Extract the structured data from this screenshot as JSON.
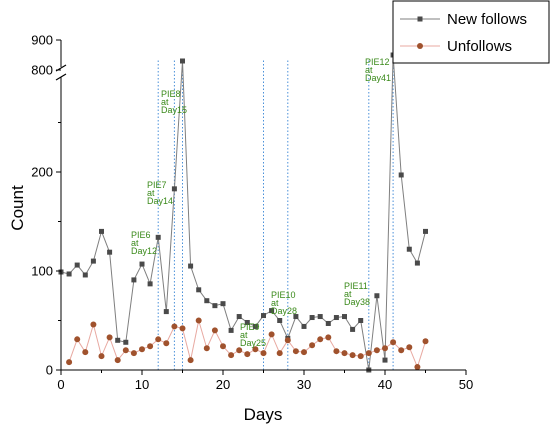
{
  "chart_data": {
    "type": "line",
    "title": "",
    "xlabel": "Days",
    "ylabel": "Count",
    "xlim": [
      0,
      50
    ],
    "ylim_lower": [
      0,
      300
    ],
    "ylim_upper": [
      800,
      900
    ],
    "axis_break": "between 300 and 800 on the y-axis",
    "x_ticks": [
      "0",
      "10",
      "20",
      "30",
      "40",
      "50"
    ],
    "y_ticks": [
      "0",
      "100",
      "200",
      "800",
      "900"
    ],
    "grid": false,
    "legend": {
      "position": "top-right",
      "entries": [
        "New follows",
        "Unfollows"
      ]
    },
    "series": [
      {
        "name": "New follows",
        "color": "#7f7f7f",
        "marker": "square",
        "marker_color": "#4a4a4a",
        "x": [
          0,
          1,
          2,
          3,
          4,
          5,
          6,
          7,
          8,
          9,
          10,
          11,
          12,
          13,
          14,
          15,
          16,
          17,
          18,
          19,
          20,
          21,
          22,
          23,
          24,
          25,
          26,
          27,
          28,
          29,
          30,
          31,
          32,
          33,
          34,
          35,
          36,
          37,
          38,
          39,
          40,
          41,
          42,
          43,
          44,
          45
        ],
        "y": [
          99,
          97,
          106,
          96,
          110,
          140,
          119,
          30,
          28,
          91,
          107,
          87,
          134,
          59,
          183,
          830,
          105,
          81,
          70,
          65,
          67,
          40,
          54,
          48,
          44,
          55,
          60,
          50,
          32,
          54,
          44,
          53,
          54,
          47,
          53,
          54,
          41,
          50,
          0,
          75,
          10,
          850,
          197,
          122,
          108,
          140
        ]
      },
      {
        "name": "Unfollows",
        "color": "#e8a9a1",
        "marker": "circle",
        "marker_color": "#a0522d",
        "x": [
          1,
          2,
          3,
          4,
          5,
          6,
          7,
          8,
          9,
          10,
          11,
          12,
          13,
          14,
          15,
          16,
          17,
          18,
          19,
          20,
          21,
          22,
          23,
          24,
          25,
          26,
          27,
          28,
          29,
          30,
          31,
          32,
          33,
          34,
          35,
          36,
          37,
          38,
          39,
          40,
          41,
          42,
          43,
          44,
          45
        ],
        "y": [
          8,
          31,
          18,
          46,
          14,
          33,
          10,
          20,
          17,
          21,
          24,
          31,
          27,
          44,
          42,
          10,
          50,
          22,
          40,
          24,
          15,
          20,
          16,
          21,
          17,
          36,
          17,
          30,
          19,
          18,
          25,
          31,
          33,
          19,
          17,
          15,
          14,
          17,
          20,
          22,
          28,
          20,
          23,
          3,
          29
        ]
      }
    ],
    "annotations": [
      {
        "lines": [
          "PIE6",
          "at",
          "Day12"
        ],
        "x": 12
      },
      {
        "lines": [
          "PIE7",
          "at",
          "Day14"
        ],
        "x": 14
      },
      {
        "lines": [
          "PIE8",
          "at",
          "Day15"
        ],
        "x": 15
      },
      {
        "lines": [
          "PIE9",
          "at",
          "Day25"
        ],
        "x": 25
      },
      {
        "lines": [
          "PIE10",
          "at",
          "Day28"
        ],
        "x": 28
      },
      {
        "lines": [
          "PIE11",
          "at",
          "Day38"
        ],
        "x": 38
      },
      {
        "lines": [
          "PIE12",
          "at",
          "Day41"
        ],
        "x": 41
      }
    ],
    "marker_line_color": "#4a90d9"
  }
}
